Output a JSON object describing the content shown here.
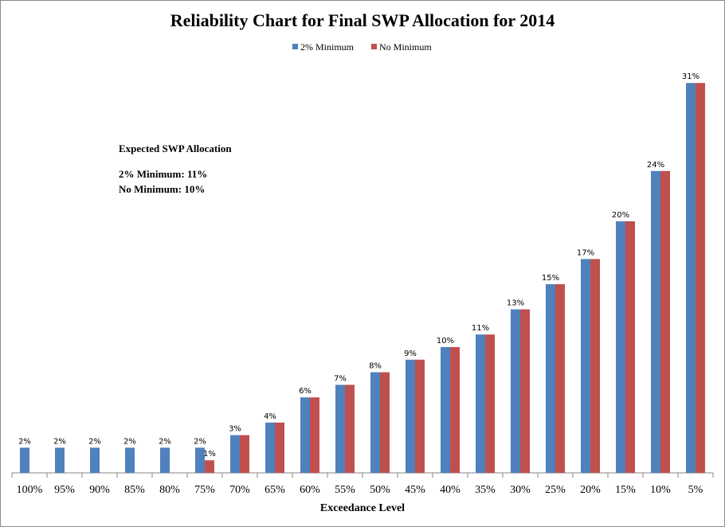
{
  "chart_data": {
    "type": "bar",
    "title": "Reliability Chart for Final SWP Allocation for 2014",
    "xlabel": "Exceedance Level",
    "ylabel": "",
    "ylim": [
      0,
      35
    ],
    "grid": false,
    "legend_position": "top",
    "categories": [
      "100%",
      "95%",
      "90%",
      "85%",
      "80%",
      "75%",
      "70%",
      "65%",
      "60%",
      "55%",
      "50%",
      "45%",
      "40%",
      "35%",
      "30%",
      "25%",
      "20%",
      "15%",
      "10%",
      "5%"
    ],
    "series": [
      {
        "name": "2% Minimum",
        "color": "#4f81bd",
        "values": [
          2,
          2,
          2,
          2,
          2,
          2,
          3,
          4,
          6,
          7,
          8,
          9,
          10,
          11,
          13,
          15,
          17,
          20,
          24,
          31
        ],
        "labels": [
          "2%",
          "2%",
          "2%",
          "2%",
          "2%",
          "2%",
          "3%",
          "4%",
          "6%",
          "7%",
          "8%",
          "9%",
          "10%",
          "11%",
          "13%",
          "15%",
          "17%",
          "20%",
          "24%",
          "31%"
        ]
      },
      {
        "name": "No Minimum",
        "color": "#c0504d",
        "values": [
          0,
          0,
          0,
          0,
          0,
          1,
          3,
          4,
          6,
          7,
          8,
          9,
          10,
          11,
          13,
          15,
          17,
          20,
          24,
          31
        ],
        "labels": [
          "",
          "",
          "",
          "",
          "",
          "1%",
          "",
          "",
          "",
          "",
          "",
          "",
          "",
          "",
          "",
          "",
          "",
          "",
          "",
          ""
        ]
      }
    ],
    "annotation": {
      "heading": "Expected SWP Allocation",
      "lines": [
        "2% Minimum: 11%",
        "No Minimum: 10%"
      ]
    }
  }
}
